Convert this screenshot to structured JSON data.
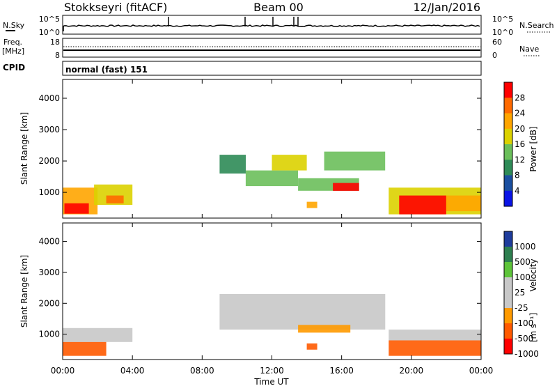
{
  "header": {
    "station": "Stokkseyri (fitACF)",
    "beam": "Beam 00",
    "date": "12/Jan/2016"
  },
  "nsky_panel": {
    "left_label": "N.Sky",
    "right_label": "N.Search",
    "left_ticks": [
      "10^5",
      "10^0"
    ],
    "right_ticks": [
      "10^5",
      "10^0"
    ]
  },
  "freq_panel": {
    "left_label_1": "Freq.",
    "left_label_2": "[MHz]",
    "right_label": "Nave",
    "left_ticks": [
      "18",
      "8"
    ],
    "right_ticks": [
      "60",
      "0"
    ]
  },
  "cpid": {
    "label": "CPID",
    "text": "normal (fast) 151"
  },
  "power_colorbar": {
    "label": "Power [dB]",
    "ticks": [
      "28",
      "24",
      "20",
      "16",
      "12",
      "8",
      "4"
    ],
    "colors": [
      "#ff0000",
      "#ff6a00",
      "#ffa500",
      "#dcd200",
      "#6bbf5b",
      "#2e8b57",
      "#1a4fa0",
      "#0a14e6"
    ]
  },
  "velocity_colorbar": {
    "label": "Velocity",
    "unit": "[m s⁻¹]",
    "ticks": [
      "1000",
      "500",
      "100",
      "25",
      "-25",
      "-100",
      "-500",
      "-1000"
    ],
    "colors": [
      "#1e3c9c",
      "#2e7f50",
      "#5ec43a",
      "#c8c8c8",
      "#c8c8c8",
      "#ff9a00",
      "#ff5a00",
      "#ff0000"
    ]
  },
  "axes": {
    "ylabel": "Slant Range [km]",
    "xlabel": "Time UT",
    "y_ticks": [
      "4000",
      "3000",
      "2000",
      "1000"
    ],
    "x_ticks": [
      "00:00",
      "04:00",
      "08:00",
      "12:00",
      "16:00",
      "20:00",
      "00:00"
    ]
  },
  "chart_data": [
    {
      "type": "heatmap",
      "title": "Power",
      "xlabel": "Time UT",
      "ylabel": "Slant Range [km]",
      "xlim": [
        "00:00",
        "24:00"
      ],
      "ylim": [
        180,
        4600
      ],
      "color_label": "Power [dB]",
      "color_range": [
        0,
        32
      ],
      "regions": [
        {
          "t0": 0.0,
          "t1": 2.0,
          "r0": 300,
          "r1": 1150,
          "value": 20
        },
        {
          "t0": 0.1,
          "t1": 1.5,
          "r0": 320,
          "r1": 650,
          "value": 28
        },
        {
          "t0": 1.8,
          "t1": 4.0,
          "r0": 600,
          "r1": 1250,
          "value": 18
        },
        {
          "t0": 2.5,
          "t1": 3.5,
          "r0": 650,
          "r1": 900,
          "value": 26
        },
        {
          "t0": 9.0,
          "t1": 10.5,
          "r0": 1600,
          "r1": 2200,
          "value": 10
        },
        {
          "t0": 10.5,
          "t1": 13.5,
          "r0": 1200,
          "r1": 1700,
          "value": 12
        },
        {
          "t0": 12.0,
          "t1": 14.0,
          "r0": 1700,
          "r1": 2200,
          "value": 18
        },
        {
          "t0": 13.5,
          "t1": 17.0,
          "r0": 1050,
          "r1": 1450,
          "value": 14
        },
        {
          "t0": 15.5,
          "t1": 17.0,
          "r0": 1050,
          "r1": 1300,
          "value": 28
        },
        {
          "t0": 15.0,
          "t1": 18.5,
          "r0": 1700,
          "r1": 2300,
          "value": 14
        },
        {
          "t0": 14.0,
          "t1": 14.6,
          "r0": 500,
          "r1": 700,
          "value": 20
        },
        {
          "t0": 18.7,
          "t1": 24.0,
          "r0": 300,
          "r1": 1150,
          "value": 16
        },
        {
          "t0": 19.3,
          "t1": 22.0,
          "r0": 300,
          "r1": 900,
          "value": 30
        },
        {
          "t0": 22.0,
          "t1": 24.0,
          "r0": 400,
          "r1": 900,
          "value": 20
        }
      ]
    },
    {
      "type": "heatmap",
      "title": "Velocity",
      "xlabel": "Time UT",
      "ylabel": "Slant Range [km]",
      "xlim": [
        "00:00",
        "24:00"
      ],
      "ylim": [
        180,
        4600
      ],
      "color_label": "Velocity [m s⁻¹]",
      "color_range": [
        -1000,
        1000
      ],
      "regions": [
        {
          "t0": 0.0,
          "t1": 2.5,
          "r0": 300,
          "r1": 750,
          "value": -300
        },
        {
          "t0": 0.0,
          "t1": 4.0,
          "r0": 750,
          "r1": 1200,
          "value": 0
        },
        {
          "t0": 9.0,
          "t1": 18.5,
          "r0": 1150,
          "r1": 2300,
          "value": 0
        },
        {
          "t0": 13.5,
          "t1": 16.5,
          "r0": 1050,
          "r1": 1300,
          "value": -80
        },
        {
          "t0": 14.0,
          "t1": 14.6,
          "r0": 500,
          "r1": 700,
          "value": -300
        },
        {
          "t0": 18.7,
          "t1": 24.0,
          "r0": 300,
          "r1": 800,
          "value": -300
        },
        {
          "t0": 18.7,
          "t1": 24.0,
          "r0": 800,
          "r1": 1150,
          "value": 0
        }
      ]
    }
  ]
}
